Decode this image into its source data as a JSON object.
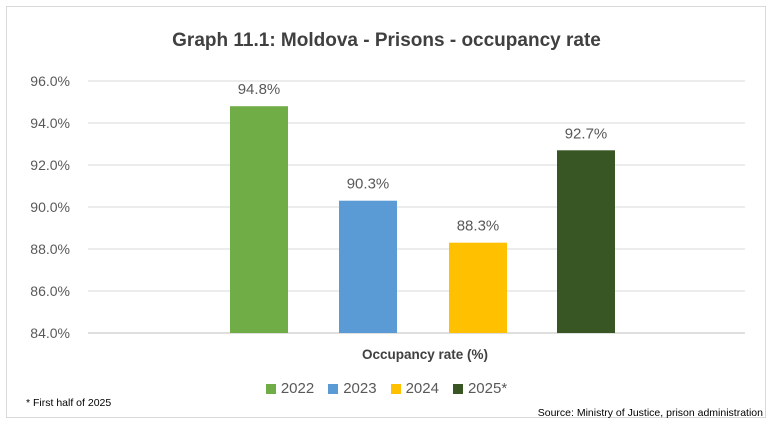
{
  "title": "Graph 11.1: Moldova - Prisons - occupancy rate",
  "chart_data": {
    "type": "bar",
    "title": "Graph 11.1: Moldova - Prisons - occupancy rate",
    "xlabel": "Occupancy rate (%)",
    "ylabel": "",
    "ylim": [
      84.0,
      96.0
    ],
    "yticks": [
      "96.0%",
      "94.0%",
      "92.0%",
      "90.0%",
      "88.0%",
      "86.0%",
      "84.0%"
    ],
    "grid": true,
    "legend_position": "bottom",
    "series": [
      {
        "name": "2022",
        "values": [
          94.8
        ],
        "label": "94.8%",
        "color": "#70ad47"
      },
      {
        "name": "2023",
        "values": [
          90.3
        ],
        "label": "90.3%",
        "color": "#5b9bd5"
      },
      {
        "name": "2024",
        "values": [
          88.3
        ],
        "label": "88.3%",
        "color": "#ffc000"
      },
      {
        "name": "2025*",
        "values": [
          92.7
        ],
        "label": "92.7%",
        "color": "#375623"
      }
    ]
  },
  "footnote": "* First half of 2025",
  "source": "Source: Ministry of Justice, prison administration"
}
